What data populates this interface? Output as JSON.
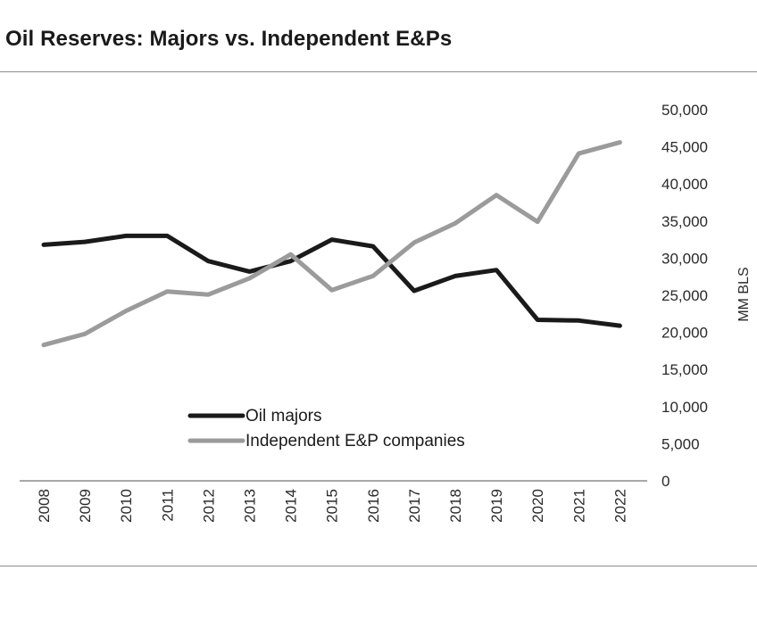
{
  "title": "Oil Reserves: Majors vs. Independent E&Ps",
  "chart_data": {
    "type": "line",
    "x": [
      "2008",
      "2009",
      "2010",
      "2011",
      "2012",
      "2013",
      "2014",
      "2015",
      "2016",
      "2017",
      "2018",
      "2019",
      "2020",
      "2021",
      "2022"
    ],
    "series": [
      {
        "name": "Oil majors",
        "color": "#1a1a1a",
        "values": [
          31800,
          32200,
          33000,
          33000,
          29600,
          28200,
          29600,
          32500,
          31600,
          25600,
          27600,
          28400,
          21700,
          21600,
          20900
        ]
      },
      {
        "name": "Independent E&P companies",
        "color": "#9b9b9b",
        "values": [
          18300,
          19800,
          22900,
          25500,
          25100,
          27300,
          30500,
          25700,
          27600,
          32100,
          34700,
          38500,
          34900,
          44100,
          45600
        ]
      }
    ],
    "y_ticks": [
      "0",
      "5,000",
      "10,000",
      "15,000",
      "20,000",
      "25,000",
      "30,000",
      "35,000",
      "40,000",
      "45,000",
      "50,000"
    ],
    "ylabel": "MM BLS",
    "xlabel": "",
    "ylim": [
      0,
      50000
    ],
    "grid": false,
    "legend_position": "bottom-center"
  }
}
